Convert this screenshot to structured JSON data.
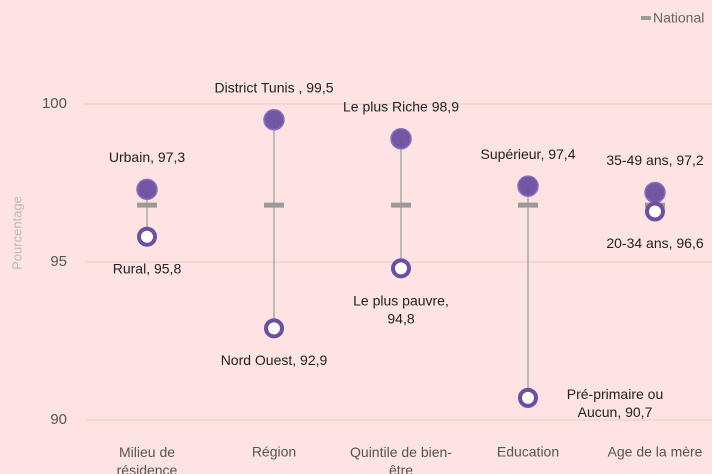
{
  "chart_data": {
    "type": "dumbbell",
    "y_label": "Pourcentage",
    "categories": [
      "Milieu de\nrésidence",
      "Région",
      "Quintile de bien-\nêtre",
      "Education",
      "Age de la mère"
    ],
    "ylim": [
      89.5,
      102
    ],
    "yticks": [
      90,
      95,
      100
    ],
    "grid": true,
    "legend": "top-right",
    "series": [
      {
        "color": "#6b4fa0",
        "style": "filled",
        "values": [
          97.3,
          99.5,
          98.9,
          97.4,
          97.2
        ],
        "value_labels": [
          "Urbain, 97,3",
          "District Tunis , 99,5",
          "Le plus Riche 98,9",
          "Supérieur, 97,4",
          "35-49 ans, 97,2"
        ]
      },
      {
        "color": "#6b4fa0",
        "style": "hollow",
        "values": [
          95.8,
          92.9,
          94.8,
          90.7,
          96.6
        ],
        "value_labels": [
          "Rural, 95,8",
          "Nord Ouest, 92,9",
          "Le plus pauvre,\n94,8",
          "Pré-primaire ou\nAucun, 90,7",
          "20-34 ans, 96,6"
        ]
      },
      {
        "name": "National",
        "color": "#9a9a9a",
        "style": "dash",
        "values": [
          96.8,
          96.8,
          96.8,
          96.8,
          96.8
        ]
      }
    ]
  }
}
